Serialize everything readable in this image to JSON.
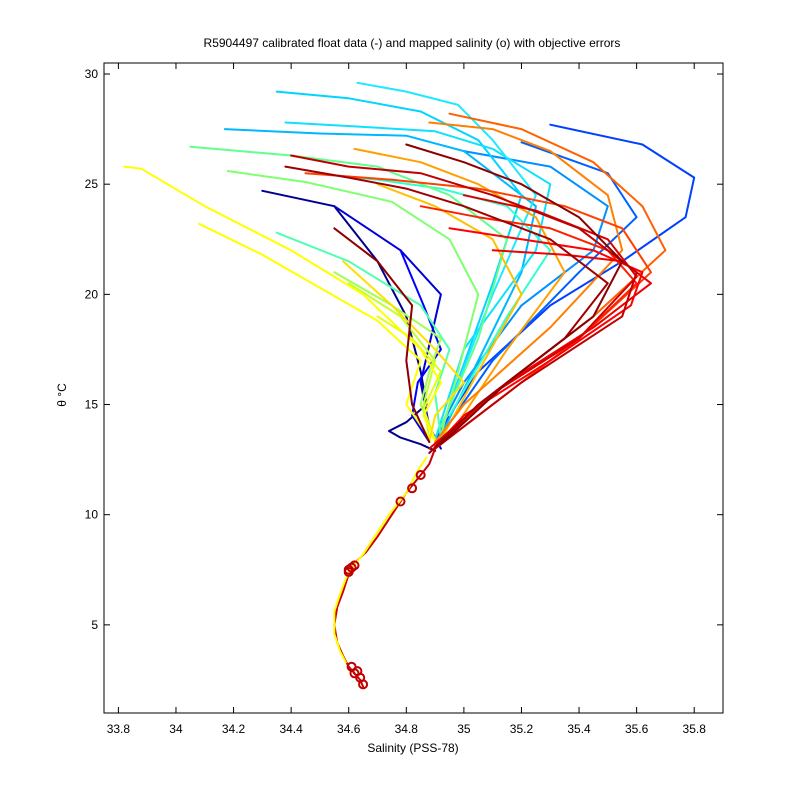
{
  "chart_data": {
    "type": "line",
    "title": "R5904497 calibrated float data (-) and mapped salinity (o) with objective errors",
    "xlabel": "Salinity (PSS-78)",
    "ylabel": "θ °C",
    "xlim": [
      33.75,
      35.9
    ],
    "ylim": [
      1.0,
      30.5
    ],
    "xticks": [
      33.8,
      34,
      34.2,
      34.4,
      34.6,
      34.8,
      35,
      35.2,
      35.4,
      35.6,
      35.8
    ],
    "yticks": [
      5,
      10,
      15,
      20,
      25,
      30
    ],
    "grid": false,
    "legend": "none",
    "colormap": "jet",
    "series": [
      {
        "color": "#00008f",
        "x": [
          34.3,
          34.55,
          34.7,
          34.8,
          34.85,
          34.87,
          34.8,
          34.74,
          34.78,
          34.85,
          34.9
        ],
        "y": [
          24.7,
          24.0,
          21.5,
          19.0,
          16.5,
          15.0,
          14.2,
          13.8,
          13.5,
          13.2,
          12.9
        ]
      },
      {
        "color": "#0000d9",
        "x": [
          34.55,
          34.78,
          34.92,
          34.85,
          34.88,
          34.92
        ],
        "y": [
          24.0,
          22.0,
          20.0,
          16.0,
          14.0,
          13.0
        ]
      },
      {
        "color": "#0000ff",
        "x": [
          34.78,
          34.86,
          34.92,
          34.84,
          34.82,
          34.88
        ],
        "y": [
          22.0,
          19.5,
          17.5,
          16.0,
          14.5,
          13.3
        ]
      },
      {
        "color": "#0040ff",
        "x": [
          35.3,
          35.62,
          35.8,
          35.77,
          35.55,
          35.3,
          35.05,
          34.95,
          34.9
        ],
        "y": [
          27.7,
          26.8,
          25.3,
          23.5,
          21.5,
          19.5,
          16.5,
          14.5,
          13.3
        ]
      },
      {
        "color": "#0060ff",
        "x": [
          35.2,
          35.5,
          35.6,
          35.4,
          35.1,
          34.92
        ],
        "y": [
          26.9,
          25.5,
          23.5,
          21.0,
          17.0,
          13.6
        ]
      },
      {
        "color": "#0090ff",
        "x": [
          35.0,
          35.3,
          35.5,
          35.45,
          35.2,
          35.0,
          34.9
        ],
        "y": [
          26.5,
          25.8,
          24.0,
          22.0,
          19.5,
          16.0,
          13.5
        ]
      },
      {
        "color": "#00b8ff",
        "x": [
          34.17,
          34.5,
          34.8,
          35.0,
          35.25,
          35.2,
          35.05,
          34.92
        ],
        "y": [
          27.5,
          27.3,
          27.2,
          26.5,
          24.0,
          21.0,
          17.0,
          13.6
        ]
      },
      {
        "color": "#00d5ff",
        "x": [
          34.35,
          34.6,
          34.85,
          35.05,
          35.2,
          35.1,
          34.95
        ],
        "y": [
          29.2,
          28.9,
          28.3,
          27.0,
          24.5,
          20.5,
          15.0
        ]
      },
      {
        "color": "#10e0ff",
        "x": [
          34.38,
          34.65,
          34.9,
          35.1,
          35.3,
          35.25,
          35.0,
          34.9
        ],
        "y": [
          27.8,
          27.6,
          27.4,
          26.6,
          25.0,
          22.0,
          17.5,
          13.4
        ]
      },
      {
        "color": "#20e8ff",
        "x": [
          34.63,
          34.8,
          34.98,
          35.1,
          35.25,
          35.1,
          34.95
        ],
        "y": [
          29.6,
          29.2,
          28.6,
          27.0,
          24.5,
          20.0,
          15.0
        ]
      },
      {
        "color": "#30ffd0",
        "x": [
          34.48,
          34.7,
          34.92,
          35.15,
          35.3,
          35.15,
          34.95
        ],
        "y": [
          25.5,
          25.2,
          24.8,
          24.0,
          22.0,
          19.0,
          14.5
        ]
      },
      {
        "color": "#50ffb0",
        "x": [
          34.35,
          34.6,
          34.85,
          34.95,
          34.9,
          34.92
        ],
        "y": [
          22.8,
          21.5,
          19.5,
          17.5,
          15.5,
          13.5
        ]
      },
      {
        "color": "#60ff90",
        "x": [
          34.05,
          34.4,
          34.7,
          34.95,
          35.15,
          35.05,
          34.92
        ],
        "y": [
          26.7,
          26.3,
          25.8,
          24.5,
          22.5,
          18.0,
          14.0
        ]
      },
      {
        "color": "#80ff70",
        "x": [
          34.18,
          34.45,
          34.75,
          34.95,
          35.05,
          34.98,
          34.92
        ],
        "y": [
          25.6,
          25.1,
          24.2,
          22.5,
          20.0,
          16.5,
          13.6
        ]
      },
      {
        "color": "#a0ff50",
        "x": [
          34.55,
          34.75,
          34.92,
          34.88,
          34.85,
          34.9
        ],
        "y": [
          21.0,
          19.5,
          18.0,
          16.5,
          15.0,
          13.4
        ]
      },
      {
        "color": "#c0ff30",
        "x": [
          34.6,
          34.78,
          34.9,
          34.86,
          34.88
        ],
        "y": [
          20.5,
          19.0,
          17.0,
          15.0,
          13.5
        ]
      },
      {
        "color": "#e0ff10",
        "x": [
          34.7,
          34.82,
          34.92,
          34.86,
          34.9
        ],
        "y": [
          19.0,
          18.0,
          16.5,
          14.8,
          13.4
        ]
      },
      {
        "color": "#ffff00",
        "x": [
          33.82,
          33.88,
          34.1,
          34.4,
          34.65,
          34.85,
          34.92,
          34.86,
          34.9
        ],
        "y": [
          25.8,
          25.7,
          24.0,
          22.0,
          20.0,
          17.5,
          16.0,
          14.5,
          13.3
        ]
      },
      {
        "color": "#ffff00",
        "x": [
          34.08,
          34.3,
          34.5,
          34.7,
          34.85,
          34.8,
          34.88
        ],
        "y": [
          23.2,
          21.8,
          20.3,
          18.8,
          17.0,
          15.0,
          13.5
        ]
      },
      {
        "color": "#ffe000",
        "x": [
          34.58,
          34.75,
          34.9,
          35.0,
          34.9,
          34.88
        ],
        "y": [
          21.5,
          19.5,
          17.5,
          16.0,
          14.5,
          13.3
        ]
      },
      {
        "color": "#ffc000",
        "x": [
          34.7,
          34.9,
          35.1,
          35.2,
          35.05,
          34.92
        ],
        "y": [
          25.0,
          24.0,
          22.5,
          20.0,
          16.5,
          13.4
        ]
      },
      {
        "color": "#ffa000",
        "x": [
          34.62,
          34.85,
          35.05,
          35.25,
          35.35,
          35.15,
          34.95
        ],
        "y": [
          26.6,
          26.0,
          25.0,
          23.5,
          21.0,
          17.5,
          13.6
        ]
      },
      {
        "color": "#ff8000",
        "x": [
          34.88,
          35.1,
          35.3,
          35.5,
          35.55,
          35.3,
          35.0,
          34.9
        ],
        "y": [
          27.8,
          27.5,
          26.5,
          24.5,
          22.0,
          18.5,
          15.0,
          13.3
        ]
      },
      {
        "color": "#ff6000",
        "x": [
          34.95,
          35.2,
          35.45,
          35.62,
          35.7,
          35.45,
          35.1,
          34.92
        ],
        "y": [
          28.2,
          27.5,
          26.0,
          24.0,
          22.0,
          19.0,
          15.5,
          13.4
        ]
      },
      {
        "color": "#ff4000",
        "x": [
          34.45,
          34.75,
          35.05,
          35.35,
          35.55,
          35.65,
          35.4,
          35.05,
          34.9
        ],
        "y": [
          25.5,
          25.2,
          24.8,
          24.0,
          23.0,
          21.0,
          18.0,
          14.5,
          13.0
        ]
      },
      {
        "color": "#ff2000",
        "x": [
          34.85,
          35.05,
          35.3,
          35.5,
          35.6,
          35.4,
          35.1,
          34.92
        ],
        "y": [
          24.0,
          23.5,
          23.0,
          22.0,
          20.5,
          18.0,
          15.5,
          13.3
        ]
      },
      {
        "color": "#ff0000",
        "x": [
          34.95,
          35.2,
          35.45,
          35.62,
          35.58,
          35.3,
          35.0,
          34.9
        ],
        "y": [
          23.0,
          22.5,
          22.0,
          21.0,
          19.5,
          17.0,
          14.5,
          13.1
        ]
      },
      {
        "color": "#ee0000",
        "x": [
          35.1,
          35.35,
          35.55,
          35.65,
          35.45,
          35.15,
          34.9
        ],
        "y": [
          22.0,
          21.8,
          21.5,
          20.5,
          18.5,
          16.0,
          13.0
        ]
      },
      {
        "color": "#d80000",
        "x": [
          35.0,
          35.25,
          35.5,
          35.6,
          35.4,
          35.1,
          34.88
        ],
        "y": [
          24.5,
          23.8,
          22.5,
          20.8,
          18.0,
          15.5,
          13.0
        ]
      },
      {
        "color": "#c00000",
        "x": [
          34.4,
          34.6,
          34.85,
          35.1,
          35.4,
          35.6,
          35.55,
          35.2,
          34.9
        ],
        "y": [
          26.3,
          25.8,
          25.5,
          24.5,
          23.0,
          21.0,
          19.0,
          16.0,
          13.0
        ]
      },
      {
        "color": "#a00000",
        "x": [
          34.38,
          34.6,
          34.8,
          35.0,
          35.3,
          35.5,
          35.35,
          35.05,
          34.88
        ],
        "y": [
          25.8,
          25.3,
          24.8,
          24.0,
          22.5,
          20.5,
          18.0,
          15.0,
          12.8
        ]
      },
      {
        "color": "#8b0000",
        "x": [
          34.55,
          34.7,
          34.82,
          34.8,
          34.82,
          34.88
        ],
        "y": [
          23.0,
          21.5,
          19.5,
          17.0,
          15.0,
          13.3
        ]
      },
      {
        "color": "#8b0000",
        "x": [
          34.8,
          35.0,
          35.2,
          35.4,
          35.55,
          35.45,
          35.15,
          34.92
        ],
        "y": [
          26.8,
          26.0,
          25.0,
          23.5,
          21.5,
          19.0,
          16.0,
          13.2
        ]
      },
      {
        "color": "#cc0000",
        "x": [
          34.9,
          34.88,
          34.85,
          34.8,
          34.75,
          34.7,
          34.66,
          34.62,
          34.6,
          34.58,
          34.56,
          34.55,
          34.56,
          34.58,
          34.6,
          34.62,
          34.64,
          34.65
        ],
        "y": [
          13.0,
          12.3,
          11.8,
          11.0,
          10.0,
          9.0,
          8.3,
          7.8,
          7.3,
          6.5,
          5.8,
          5.0,
          4.2,
          3.6,
          3.1,
          2.8,
          2.5,
          2.2
        ]
      },
      {
        "color": "#ffff00",
        "x": [
          34.87,
          34.84,
          34.8,
          34.74,
          34.69,
          34.65,
          34.61,
          34.59,
          34.57,
          34.55,
          34.55,
          34.57,
          34.59
        ],
        "y": [
          12.6,
          12.0,
          11.0,
          10.0,
          9.0,
          8.2,
          7.6,
          7.1,
          6.4,
          5.6,
          4.6,
          3.8,
          3.3
        ]
      }
    ],
    "mapped_points": {
      "color": "#c00000",
      "x": [
        34.6,
        34.61,
        34.62,
        34.6,
        34.61,
        34.63,
        34.64,
        34.65,
        34.62,
        34.85,
        34.82,
        34.78
      ],
      "y": [
        7.5,
        7.6,
        7.7,
        7.4,
        3.1,
        2.9,
        2.6,
        2.3,
        2.8,
        11.8,
        11.2,
        10.6
      ]
    }
  }
}
